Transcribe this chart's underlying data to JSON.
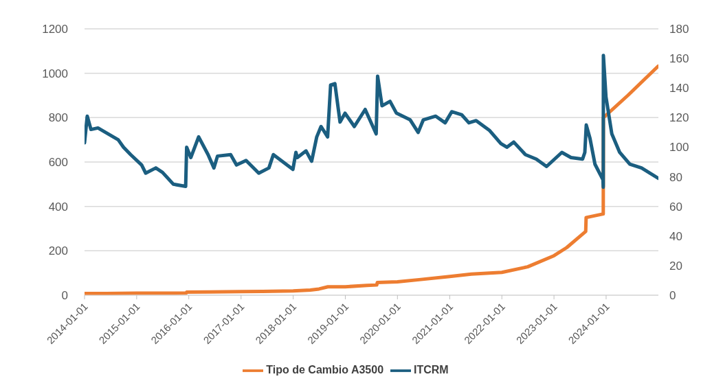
{
  "chart_data": {
    "type": "line",
    "xlim": [
      "2014-01-01",
      "2025-01-01"
    ],
    "xticks": [
      "2014-01-01",
      "2015-01-01",
      "2016-01-01",
      "2017-01-01",
      "2018-01-01",
      "2019-01-01",
      "2020-01-01",
      "2021-01-01",
      "2022-01-01",
      "2023-01-01",
      "2024-01-01"
    ],
    "ylim": [
      0,
      1200
    ],
    "yticks": [
      0,
      200,
      400,
      600,
      800,
      1000,
      1200
    ],
    "y2lim": [
      0,
      180
    ],
    "y2ticks": [
      0,
      20,
      40,
      60,
      80,
      100,
      120,
      140,
      160,
      180
    ],
    "grid": "y",
    "legend": "bottom",
    "marker": "none",
    "line_style": "solid",
    "series": [
      {
        "name": "Tipo de Cambio A3500",
        "color": "#ed7d31",
        "x": [
          "2014-01-01",
          "2014-06-01",
          "2015-01-01",
          "2015-06-01",
          "2015-12-15",
          "2015-12-17",
          "2016-06-01",
          "2017-01-01",
          "2017-06-01",
          "2018-01-01",
          "2018-05-01",
          "2018-07-01",
          "2018-09-01",
          "2019-01-01",
          "2019-06-01",
          "2019-08-09",
          "2019-08-13",
          "2020-01-01",
          "2020-06-01",
          "2021-01-01",
          "2021-06-01",
          "2022-01-01",
          "2022-07-01",
          "2023-01-01",
          "2023-04-01",
          "2023-07-01",
          "2023-08-11",
          "2023-08-14",
          "2023-12-12",
          "2023-12-13",
          "2024-06-01",
          "2024-12-31"
        ],
        "values": [
          8,
          8,
          9,
          9,
          10,
          14,
          15,
          16,
          17,
          19,
          23,
          28,
          38,
          38,
          44,
          46,
          57,
          60,
          70,
          84,
          95,
          103,
          128,
          178,
          215,
          265,
          287,
          350,
          366,
          800,
          900,
          1032
        ]
      },
      {
        "name": "ITCRM",
        "color": "#1b5e80",
        "axis": "y2",
        "x": [
          "2014-01-01",
          "2014-01-20",
          "2014-02-15",
          "2014-04-05",
          "2014-08-25",
          "2014-10-01",
          "2014-11-20",
          "2015-02-05",
          "2015-03-05",
          "2015-05-15",
          "2015-07-01",
          "2015-09-15",
          "2015-12-10",
          "2015-12-17",
          "2016-01-15",
          "2016-03-10",
          "2016-05-15",
          "2016-06-25",
          "2016-07-20",
          "2016-10-20",
          "2016-11-30",
          "2017-02-05",
          "2017-05-05",
          "2017-07-15",
          "2017-08-15",
          "2017-12-30",
          "2018-01-20",
          "2018-01-30",
          "2018-04-01",
          "2018-05-10",
          "2018-06-15",
          "2018-07-15",
          "2018-08-30",
          "2018-09-20",
          "2018-10-20",
          "2018-11-25",
          "2018-12-30",
          "2019-03-05",
          "2019-05-20",
          "2019-08-05",
          "2019-08-15",
          "2019-09-15",
          "2019-11-10",
          "2019-12-25",
          "2020-03-30",
          "2020-05-25",
          "2020-06-30",
          "2020-09-25",
          "2020-11-30",
          "2021-01-15",
          "2021-03-25",
          "2021-05-15",
          "2021-07-05",
          "2021-10-05",
          "2021-12-25",
          "2022-02-05",
          "2022-03-25",
          "2022-06-15",
          "2022-08-30",
          "2022-11-10",
          "2023-02-25",
          "2023-04-30",
          "2023-07-20",
          "2023-08-05",
          "2023-08-15",
          "2023-09-10",
          "2023-10-15",
          "2023-12-10",
          "2023-12-12",
          "2023-12-13",
          "2023-12-31",
          "2024-02-10",
          "2024-04-05",
          "2024-06-15",
          "2024-09-05",
          "2024-12-31"
        ],
        "values": [
          103,
          121,
          112,
          113,
          105,
          100,
          95,
          88,
          82.5,
          86,
          83,
          75,
          73.5,
          100,
          93,
          107,
          95,
          86,
          94,
          95,
          88,
          91,
          82.5,
          86,
          95,
          85,
          96.5,
          93,
          97.5,
          90.5,
          107,
          114,
          107,
          142,
          143,
          117,
          123,
          114,
          125.5,
          109,
          148,
          128,
          131,
          123,
          118.5,
          110,
          118.5,
          121,
          116.5,
          124,
          122,
          116.5,
          118,
          111.5,
          102.5,
          100,
          103.5,
          95,
          92,
          87,
          96.5,
          93,
          92,
          96.5,
          115,
          106,
          88.5,
          78,
          73,
          162,
          134,
          109,
          96.5,
          88.5,
          86,
          79
        ]
      }
    ]
  }
}
